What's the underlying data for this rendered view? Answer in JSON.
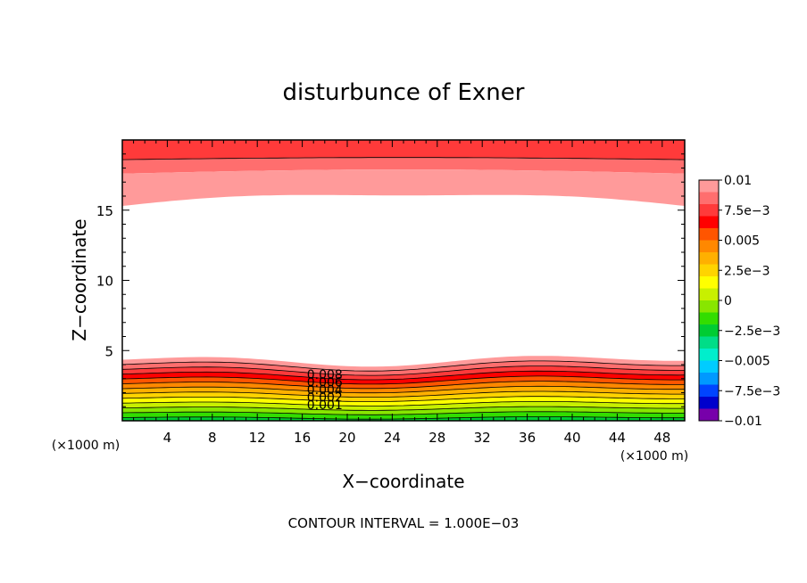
{
  "chart_data": {
    "type": "contour",
    "title": "disturbunce of Exner",
    "xlabel": "X−coordinate",
    "ylabel": "Z−coordinate",
    "x_unit_label": "(×1000 m)",
    "y_unit_label": "(×1000 m)",
    "footer": "CONTOUR INTERVAL = 1.000E−03",
    "xlim": [
      0,
      50
    ],
    "ylim": [
      0,
      20
    ],
    "x_ticks": [
      "4",
      "8",
      "12",
      "16",
      "20",
      "24",
      "28",
      "32",
      "36",
      "40",
      "44",
      "48"
    ],
    "y_ticks": [
      "5",
      "10",
      "15"
    ],
    "grid": false,
    "contour_labels": [
      "0.008",
      "0.006",
      "0.004",
      "0.002",
      "0.001"
    ],
    "colorbar": {
      "range": [
        -0.01,
        0.01
      ],
      "labels": [
        "0.01",
        "7.5e−3",
        "0.005",
        "2.5e−3",
        "0",
        "−2.5e−3",
        "−0.005",
        "−7.5e−3",
        "−0.01"
      ],
      "colors": [
        "#ff9a9a",
        "#ff6e6e",
        "#ff3a3a",
        "#ff0000",
        "#ff5500",
        "#ff8800",
        "#ffb000",
        "#ffd400",
        "#ffff00",
        "#c8f000",
        "#88e600",
        "#33dd00",
        "#00cc33",
        "#00dd88",
        "#00eecc",
        "#00ccff",
        "#0099ff",
        "#0044ff",
        "#0000cc",
        "#7700aa"
      ]
    }
  }
}
